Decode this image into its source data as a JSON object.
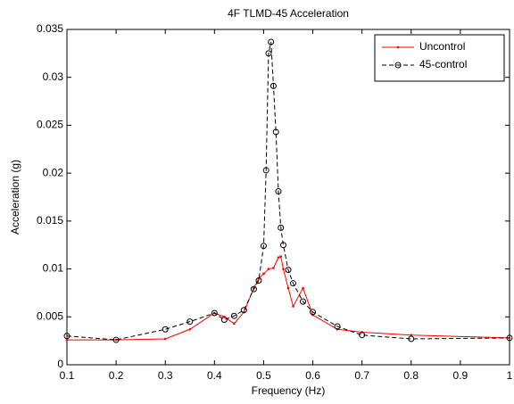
{
  "chart_data": {
    "type": "line",
    "title": "4F TLMD-45 Acceleration",
    "x_label": "Frequency (Hz)",
    "y_label": "Acceleration (g)",
    "xlim": [
      0.1,
      1
    ],
    "xticks": [
      0.1,
      0.2,
      0.3,
      0.4,
      0.5,
      0.6,
      0.7,
      0.8,
      0.9,
      1
    ],
    "ylim": [
      0,
      0.035
    ],
    "yticks": [
      0,
      0.005,
      0.01,
      0.015,
      0.02,
      0.025,
      0.03,
      0.035
    ],
    "grid": false,
    "legend": "upper right",
    "series": [
      {
        "name": "Uncontrol",
        "color": "#ff0000",
        "line": "solid",
        "marker": "dot",
        "x": [
          0.1,
          0.2,
          0.3,
          0.35,
          0.4,
          0.42,
          0.44,
          0.46,
          0.48,
          0.49,
          0.5,
          0.51,
          0.52,
          0.53,
          0.535,
          0.54,
          0.55,
          0.56,
          0.58,
          0.6,
          0.65,
          0.7,
          0.8,
          1
        ],
        "values": [
          0.0026,
          0.0026,
          0.0027,
          0.0037,
          0.0054,
          0.005,
          0.0043,
          0.0055,
          0.008,
          0.009,
          0.0095,
          0.01,
          0.0101,
          0.0112,
          0.0113,
          0.01,
          0.008,
          0.0061,
          0.008,
          0.0052,
          0.0037,
          0.0034,
          0.0031,
          0.0028
        ]
      },
      {
        "name": "45-control",
        "color": "#000000",
        "line": "dashed",
        "marker": "circle",
        "x": [
          0.1,
          0.2,
          0.3,
          0.35,
          0.4,
          0.42,
          0.44,
          0.46,
          0.48,
          0.49,
          0.5,
          0.505,
          0.51,
          0.515,
          0.52,
          0.525,
          0.53,
          0.535,
          0.54,
          0.55,
          0.56,
          0.58,
          0.6,
          0.65,
          0.7,
          0.8,
          1
        ],
        "values": [
          0.003,
          0.0026,
          0.0037,
          0.0045,
          0.0054,
          0.0047,
          0.0051,
          0.0057,
          0.0079,
          0.0088,
          0.0124,
          0.0203,
          0.0325,
          0.0337,
          0.0291,
          0.0243,
          0.0181,
          0.0143,
          0.0125,
          0.0099,
          0.0085,
          0.0066,
          0.0055,
          0.004,
          0.0031,
          0.0027,
          0.0028
        ]
      }
    ]
  }
}
